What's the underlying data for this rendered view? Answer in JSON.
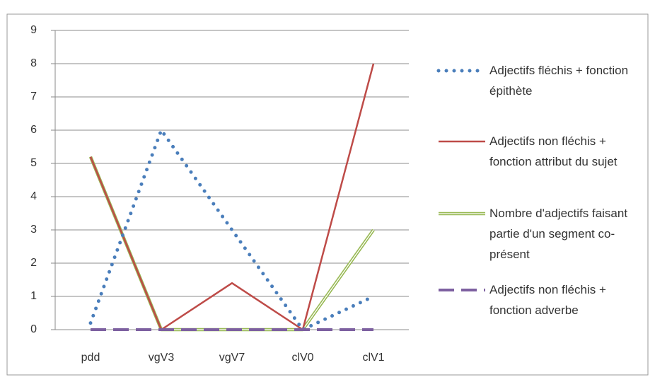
{
  "chart_data": {
    "type": "line",
    "categories": [
      "pdd",
      "vgV3",
      "vgV7",
      "clV0",
      "clV1"
    ],
    "series": [
      {
        "name": "Adjectifs fléchis + fonction épithète",
        "color": "#4a7ebb",
        "style": "dotted",
        "values": [
          0.2,
          6,
          3,
          0,
          1
        ]
      },
      {
        "name": "Adjectifs non fléchis + fonction attribut du sujet",
        "color": "#be4b48",
        "style": "solid",
        "values": [
          5.2,
          0,
          1.4,
          0,
          8
        ]
      },
      {
        "name": "Nombre d'adjectifs faisant partie d'un segment co-présent",
        "color": "#98b954",
        "style": "double",
        "values": [
          5.2,
          0,
          0,
          0,
          3
        ]
      },
      {
        "name": "Adjectifs non fléchis + fonction adverbe",
        "color": "#7d60a0",
        "style": "dashed",
        "values": [
          0,
          0,
          0,
          0,
          0
        ]
      }
    ],
    "ylim": [
      0,
      9
    ],
    "yticks": [
      0,
      1,
      2,
      3,
      4,
      5,
      6,
      7,
      8,
      9
    ],
    "grid": true,
    "legend": "right"
  }
}
